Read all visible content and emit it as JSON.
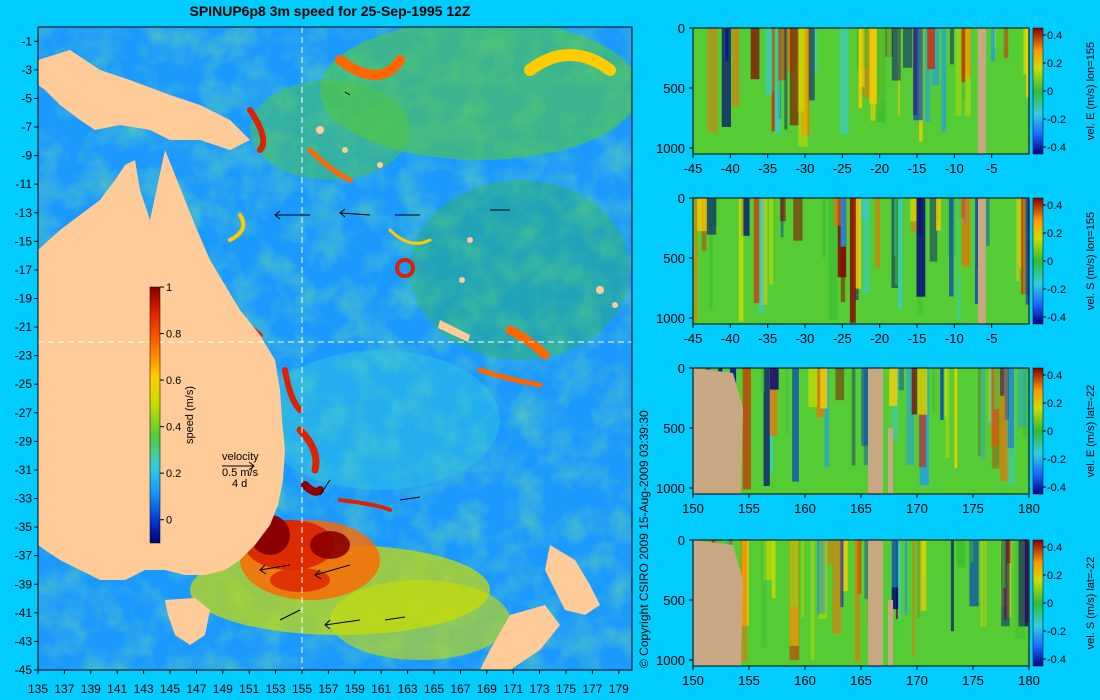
{
  "page": {
    "title": "SPINUP6p8 3m speed for 25-Sep-1995 12Z",
    "copyright": "© Copyright CSIRO 2009   15-Aug-2009 03:39:30"
  },
  "colors": {
    "background": "#00ccff",
    "land_map": "#ffcc99",
    "land_section": "#c8a882",
    "colormap": [
      "#00007f",
      "#0033cc",
      "#1a99ff",
      "#33ccdd",
      "#55cc33",
      "#33bb33",
      "#ccdd00",
      "#ffcc00",
      "#ff6600",
      "#dd2200",
      "#8b0000"
    ]
  },
  "map": {
    "x_ticks": [
      "135",
      "137",
      "139",
      "141",
      "143",
      "145",
      "147",
      "149",
      "151",
      "153",
      "155",
      "157",
      "159",
      "161",
      "163",
      "165",
      "167",
      "169",
      "171",
      "173",
      "175",
      "177",
      "179"
    ],
    "y_ticks": [
      "-1",
      "-3",
      "-5",
      "-7",
      "-9",
      "-11",
      "-13",
      "-15",
      "-17",
      "-19",
      "-21",
      "-23",
      "-25",
      "-27",
      "-29",
      "-31",
      "-33",
      "-35",
      "-37",
      "-39",
      "-41",
      "-43",
      "-45"
    ],
    "cross_section_lon": 155,
    "cross_section_lat": -22,
    "colorbar": {
      "label": "speed (m/s)",
      "ticks": [
        "1",
        "0.8",
        "0.6",
        "0.4",
        "0.2",
        "0"
      ],
      "range": [
        -0.1,
        1
      ]
    },
    "velocity_key": {
      "label": "velocity",
      "scale": "0.5 m/s",
      "time": "4 d"
    }
  },
  "chart_data": [
    {
      "type": "heatmap",
      "name": "map",
      "x_axis": "longitude",
      "y_axis": "latitude",
      "xlim": [
        135,
        180
      ],
      "ylim": [
        -45,
        0
      ],
      "colorbar_label": "speed (m/s)",
      "colorbar_range": [
        -0.1,
        1
      ]
    },
    {
      "type": "heatmap",
      "xlim": [
        -45,
        0
      ],
      "ylim": [
        1050,
        0
      ],
      "x_ticks": [
        "-45",
        "-40",
        "-35",
        "-30",
        "-25",
        "-20",
        "-15",
        "-10",
        "-5"
      ],
      "y_ticks": [
        "0",
        "500",
        "1000"
      ],
      "colorbar_label": "vel. E (m/s) lon=155",
      "colorbar_ticks": [
        "0.4",
        "0.2",
        "0",
        "-0.2",
        "-0.4"
      ],
      "colorbar_range": [
        -0.45,
        0.45
      ]
    },
    {
      "type": "heatmap",
      "xlim": [
        -45,
        0
      ],
      "ylim": [
        1050,
        0
      ],
      "x_ticks": [
        "-45",
        "-40",
        "-35",
        "-30",
        "-25",
        "-20",
        "-15",
        "-10",
        "-5"
      ],
      "y_ticks": [
        "0",
        "500",
        "1000"
      ],
      "colorbar_label": "vel. S (m/s) lon=155",
      "colorbar_ticks": [
        "0.4",
        "0.2",
        "0",
        "-0.2",
        "-0.4"
      ],
      "colorbar_range": [
        -0.45,
        0.45
      ]
    },
    {
      "type": "heatmap",
      "xlim": [
        150,
        180
      ],
      "ylim": [
        1050,
        0
      ],
      "x_ticks": [
        "150",
        "155",
        "160",
        "165",
        "170",
        "175",
        "180"
      ],
      "y_ticks": [
        "0",
        "500",
        "1000"
      ],
      "colorbar_label": "vel. E (m/s) lat=-22",
      "colorbar_ticks": [
        "0.4",
        "0.2",
        "0",
        "-0.2",
        "-0.4"
      ],
      "colorbar_range": [
        -0.45,
        0.45
      ]
    },
    {
      "type": "heatmap",
      "xlim": [
        150,
        180
      ],
      "ylim": [
        1050,
        0
      ],
      "x_ticks": [
        "150",
        "155",
        "160",
        "165",
        "170",
        "175",
        "180"
      ],
      "y_ticks": [
        "0",
        "500",
        "1000"
      ],
      "colorbar_label": "vel. S (m/s) lat=-22",
      "colorbar_ticks": [
        "0.4",
        "0.2",
        "0",
        "-0.2",
        "-0.4"
      ],
      "colorbar_range": [
        -0.45,
        0.45
      ]
    }
  ]
}
